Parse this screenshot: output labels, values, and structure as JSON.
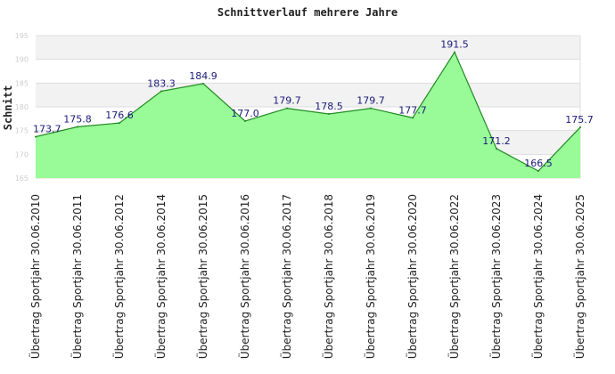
{
  "chart_data": {
    "type": "area",
    "title": "Schnittverlauf mehrere Jahre",
    "xlabel": "",
    "ylabel": "Schnitt",
    "ylim": [
      165,
      195
    ],
    "yticks": [
      165,
      170,
      175,
      180,
      185,
      190,
      195
    ],
    "grid": true,
    "categories": [
      "Übertrag Sportjahr 30.06.2010",
      "Übertrag Sportjahr 30.06.2011",
      "Übertrag Sportjahr 30.06.2012",
      "Übertrag Sportjahr 30.06.2014",
      "Übertrag Sportjahr 30.06.2015",
      "Übertrag Sportjahr 30.06.2016",
      "Übertrag Sportjahr 30.06.2017",
      "Übertrag Sportjahr 30.06.2018",
      "Übertrag Sportjahr 30.06.2019",
      "Übertrag Sportjahr 30.06.2020",
      "Übertrag Sportjahr 30.06.2022",
      "Übertrag Sportjahr 30.06.2023",
      "Übertrag Sportjahr 30.06.2024",
      "Übertrag Sportjahr 30.06.2025"
    ],
    "values": [
      173.7,
      175.8,
      176.6,
      183.3,
      184.9,
      177.0,
      179.7,
      178.5,
      179.7,
      177.7,
      191.5,
      171.2,
      166.5,
      175.7
    ],
    "value_labels": [
      "173.7",
      "175.8",
      "176.6",
      "183.3",
      "184.9",
      "177.0",
      "179.7",
      "178.5",
      "179.7",
      "177.7",
      "191.5",
      "171.2",
      "166.5",
      "175.7"
    ],
    "colors": {
      "fill": "#98fb98",
      "line": "#1f8a1f",
      "band": "#f2f2f2",
      "grid": "#dddddd",
      "label": "#1a1a7a"
    }
  }
}
